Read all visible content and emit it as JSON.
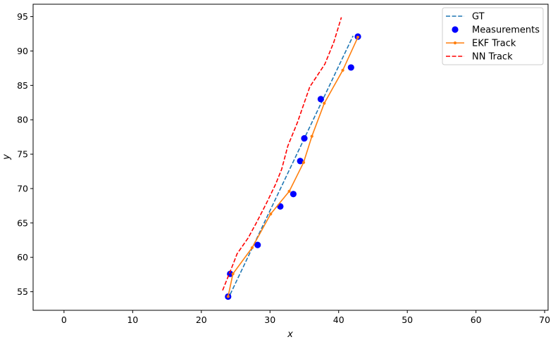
{
  "chart_data": {
    "type": "line",
    "title": "",
    "xlabel": "x",
    "ylabel": "y",
    "xlim": [
      -4.5,
      70.5
    ],
    "ylim": [
      52.3,
      96.8
    ],
    "x_ticks": [
      0,
      10,
      20,
      30,
      40,
      50,
      60,
      70
    ],
    "y_ticks": [
      55,
      60,
      65,
      70,
      75,
      80,
      85,
      90,
      95
    ],
    "grid": false,
    "legend_position": "top-right",
    "series": [
      {
        "name": "GT",
        "style": "dashed",
        "color": "#1f77b4",
        "points": [
          [
            24.2,
            54.6
          ],
          [
            42.1,
            92.2
          ]
        ]
      },
      {
        "name": "Measurements",
        "style": "scatter",
        "color": "#0000ff",
        "points": [
          [
            23.9,
            54.3
          ],
          [
            24.2,
            57.6
          ],
          [
            28.2,
            61.8
          ],
          [
            31.5,
            67.4
          ],
          [
            33.4,
            69.2
          ],
          [
            34.4,
            74.0
          ],
          [
            35.0,
            77.3
          ],
          [
            37.4,
            83.0
          ],
          [
            41.8,
            87.6
          ],
          [
            42.8,
            92.1
          ]
        ]
      },
      {
        "name": "EKF Track",
        "style": "solid-marker",
        "color": "#ff7f0e",
        "points": [
          [
            23.9,
            54.3
          ],
          [
            24.6,
            57.6
          ],
          [
            27.4,
            61.4
          ],
          [
            30.1,
            66.3
          ],
          [
            32.8,
            69.6
          ],
          [
            34.9,
            73.8
          ],
          [
            36.1,
            77.6
          ],
          [
            37.9,
            82.4
          ],
          [
            40.6,
            87.2
          ],
          [
            42.8,
            92.0
          ]
        ]
      },
      {
        "name": "NN Track",
        "style": "dashed",
        "color": "#ff0000",
        "points": [
          [
            23.1,
            55.2
          ],
          [
            24.7,
            59.2
          ],
          [
            25.2,
            60.5
          ],
          [
            26.8,
            62.8
          ],
          [
            28.0,
            65.0
          ],
          [
            29.4,
            67.7
          ],
          [
            30.8,
            70.6
          ],
          [
            31.7,
            72.8
          ],
          [
            32.6,
            76.2
          ],
          [
            34.0,
            79.6
          ],
          [
            35.8,
            84.8
          ],
          [
            37.0,
            86.6
          ],
          [
            38.0,
            88.1
          ],
          [
            39.3,
            91.3
          ],
          [
            40.4,
            94.9
          ]
        ]
      }
    ]
  }
}
